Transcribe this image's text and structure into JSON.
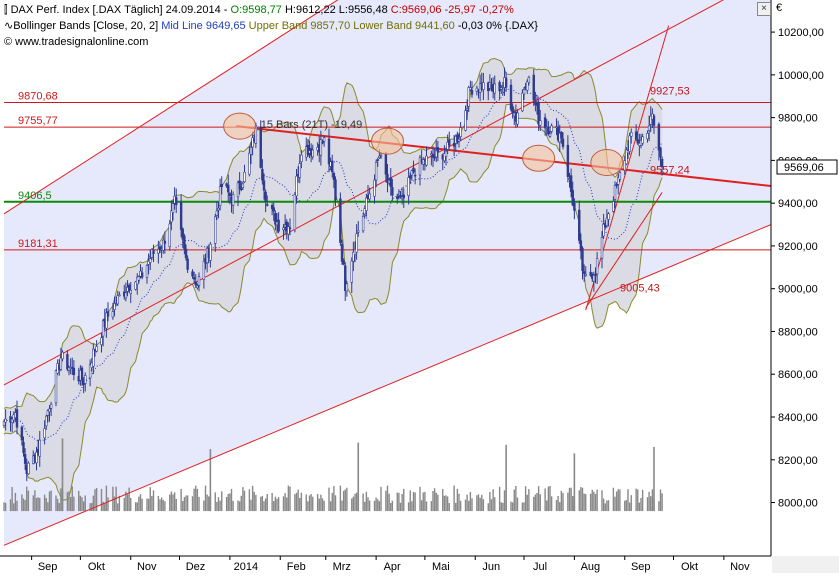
{
  "header": {
    "line1_symbol": "DAX Perf. Index [.DAX  Täglich]",
    "line1_date": "24.09.2014",
    "open_label": "O:9598,77",
    "high_label": "H:9612,22",
    "low_label": "L:9556,48",
    "close_label": "C:9569,06",
    "change_label": "-25,97",
    "change_pct_label": "-0,27%",
    "line2_indicator": "Bollinger Bands [Close, 20, 2]",
    "mid_label": "Mid Line 9649,65",
    "upper_label": "Upper Band 9857,70",
    "lower_label": "Lower Band 9441,60",
    "bb_change_label": "-0,03 0%",
    "bb_symbol": "{.DAX}",
    "line3_source": "© www.tradesignalonline.com"
  },
  "currency_symbol": "€",
  "close_button_label": "×",
  "colors": {
    "candle": "#2e3b8f",
    "bollinger_fill": "#d9d9e2",
    "bollinger_edge": "#8a8a2a",
    "channel_fill": "#e2e4fa",
    "channel_line": "#e02020",
    "support_green": "#0a8a0a",
    "level_line": "#d01818",
    "volume": "#888888",
    "highlight_ellipse": "#f4c19a"
  },
  "chart_data": {
    "type": "candlestick",
    "instrument": "DAX Perf. Index",
    "interval": "daily",
    "y_axis": {
      "range": [
        7750,
        10350
      ],
      "ticks": [
        8000,
        8200,
        8400,
        8600,
        8800,
        9000,
        9200,
        9400,
        9600,
        9800,
        10000,
        10200
      ],
      "tick_labels": [
        "8000,00",
        "8200,00",
        "8400,00",
        "8600,00",
        "8800,00",
        "9000,00",
        "9200,00",
        "9400,00",
        "9600,00",
        "9800,00",
        "10000,00",
        "10200,00"
      ],
      "last_value_label": "9569,06",
      "last_value": 9569.06
    },
    "x_axis": {
      "tick_labels": [
        "Sep",
        "Okt",
        "Nov",
        "Dez",
        "2014",
        "Feb",
        "Mrz",
        "Apr",
        "Mai",
        "Jun",
        "Jul",
        "Aug",
        "Sep",
        "Okt",
        "Nov"
      ],
      "tick_dates": [
        "2013-09-01",
        "2013-10-01",
        "2013-11-01",
        "2013-12-01",
        "2014-01-01",
        "2014-02-01",
        "2014-03-01",
        "2014-04-01",
        "2014-05-01",
        "2014-06-01",
        "2014-07-01",
        "2014-08-01",
        "2014-09-01",
        "2014-10-01",
        "2014-11-01"
      ],
      "range": [
        "2013-08-15",
        "2014-11-30"
      ],
      "last_bar_date": "2014-09-24"
    },
    "price_path": [
      [
        "2013-08-15",
        8380
      ],
      [
        "2013-08-22",
        8420
      ],
      [
        "2013-08-29",
        8150
      ],
      [
        "2013-09-05",
        8250
      ],
      [
        "2013-09-12",
        8460
      ],
      [
        "2013-09-19",
        8680
      ],
      [
        "2013-09-26",
        8620
      ],
      [
        "2013-10-03",
        8570
      ],
      [
        "2013-10-10",
        8720
      ],
      [
        "2013-10-17",
        8860
      ],
      [
        "2013-10-24",
        8950
      ],
      [
        "2013-10-31",
        9020
      ],
      [
        "2013-11-07",
        9050
      ],
      [
        "2013-11-14",
        9160
      ],
      [
        "2013-11-21",
        9210
      ],
      [
        "2013-11-28",
        9400
      ],
      [
        "2013-12-05",
        9140
      ],
      [
        "2013-12-12",
        9020
      ],
      [
        "2013-12-19",
        9180
      ],
      [
        "2013-12-27",
        9480
      ],
      [
        "2014-01-03",
        9420
      ],
      [
        "2014-01-10",
        9530
      ],
      [
        "2014-01-17",
        9740
      ],
      [
        "2014-01-24",
        9390
      ],
      [
        "2014-01-31",
        9300
      ],
      [
        "2014-02-07",
        9300
      ],
      [
        "2014-02-14",
        9660
      ],
      [
        "2014-02-21",
        9650
      ],
      [
        "2014-02-28",
        9690
      ],
      [
        "2014-03-06",
        9500
      ],
      [
        "2014-03-13",
        9020
      ],
      [
        "2014-03-20",
        9250
      ],
      [
        "2014-03-27",
        9420
      ],
      [
        "2014-04-03",
        9620
      ],
      [
        "2014-04-10",
        9450
      ],
      [
        "2014-04-17",
        9400
      ],
      [
        "2014-04-24",
        9550
      ],
      [
        "2014-05-01",
        9600
      ],
      [
        "2014-05-08",
        9620
      ],
      [
        "2014-05-15",
        9650
      ],
      [
        "2014-05-22",
        9720
      ],
      [
        "2014-05-29",
        9940
      ],
      [
        "2014-06-05",
        9950
      ],
      [
        "2014-06-12",
        9930
      ],
      [
        "2014-06-19",
        9960
      ],
      [
        "2014-06-26",
        9800
      ],
      [
        "2014-07-03",
        10000
      ],
      [
        "2014-07-10",
        9800
      ],
      [
        "2014-07-17",
        9750
      ],
      [
        "2014-07-24",
        9720
      ],
      [
        "2014-07-31",
        9410
      ],
      [
        "2014-08-07",
        9040
      ],
      [
        "2014-08-14",
        9090
      ],
      [
        "2014-08-21",
        9340
      ],
      [
        "2014-08-28",
        9500
      ],
      [
        "2014-09-04",
        9700
      ],
      [
        "2014-09-11",
        9690
      ],
      [
        "2014-09-18",
        9800
      ],
      [
        "2014-09-24",
        9569.06
      ]
    ],
    "horizontal_levels": [
      {
        "value": 9870.68,
        "label": "9870,68",
        "color": "#d01818"
      },
      {
        "value": 9755.77,
        "label": "9755,77",
        "color": "#d01818"
      },
      {
        "value": 9406.5,
        "label": "9406,5",
        "color": "#0a8a0a"
      },
      {
        "value": 9181.31,
        "label": "9181,31",
        "color": "#d01818"
      }
    ],
    "level_annotations": [
      {
        "label": "9927,53",
        "value": 9927.53
      },
      {
        "label": "9557,24",
        "value": 9557.24
      },
      {
        "label": "9005,43",
        "value": 9005.43
      }
    ],
    "measure_annotation": "15 Bars (21T) -19,49",
    "trendlines": [
      {
        "name": "channel-upper",
        "from": [
          "2013-08-15",
          9350
        ],
        "to": [
          "2014-11-30",
          11650
        ]
      },
      {
        "name": "channel-lower",
        "from": [
          "2013-08-15",
          7800
        ],
        "to": [
          "2014-11-30",
          9300
        ]
      },
      {
        "name": "channel-mid",
        "from": [
          "2013-08-15",
          8550
        ],
        "to": [
          "2014-11-30",
          10470
        ]
      },
      {
        "name": "resistance-falling",
        "from": [
          "2014-01-05",
          9760
        ],
        "to": [
          "2014-11-30",
          9480
        ]
      },
      {
        "name": "rebound-steep",
        "from": [
          "2014-08-08",
          8900
        ],
        "to": [
          "2014-09-28",
          10230
        ]
      },
      {
        "name": "rebound-support",
        "from": [
          "2014-08-08",
          8910
        ],
        "to": [
          "2014-09-24",
          9450
        ]
      }
    ],
    "highlight_points": [
      [
        "2014-01-07",
        9760
      ],
      [
        "2014-04-08",
        9690
      ],
      [
        "2014-07-10",
        9610
      ],
      [
        "2014-08-21",
        9590
      ]
    ],
    "volume_spikes": [
      [
        "2013-09-20",
        8300
      ],
      [
        "2013-12-20",
        8250
      ],
      [
        "2014-03-21",
        8280
      ],
      [
        "2014-06-20",
        8270
      ],
      [
        "2014-08-01",
        8230
      ],
      [
        "2014-09-19",
        8260
      ]
    ]
  }
}
